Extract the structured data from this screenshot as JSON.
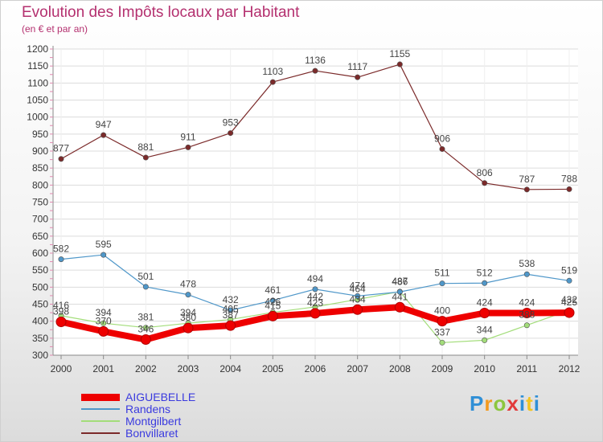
{
  "header": {
    "title": "Evolution des Impôts locaux par Habitant",
    "subtitle": "(en € et par an)"
  },
  "logo": {
    "text": "Proxiti"
  },
  "chart_data": {
    "type": "line",
    "title": "Evolution des Impôts locaux par Habitant",
    "subtitle": "(en € et par an)",
    "xlabel": "",
    "ylabel": "",
    "ylim": [
      300,
      1200
    ],
    "y_ticks": [
      300,
      350,
      400,
      450,
      500,
      550,
      600,
      650,
      700,
      750,
      800,
      850,
      900,
      950,
      1000,
      1050,
      1100,
      1150,
      1200
    ],
    "categories": [
      "2000",
      "2001",
      "2002",
      "2003",
      "2004",
      "2005",
      "2006",
      "2007",
      "2008",
      "2009",
      "2010",
      "2011",
      "2012"
    ],
    "legend_position": "bottom-left",
    "series": [
      {
        "name": "AIGUEBELLE",
        "color": "#ee0000",
        "values": [
          398,
          370,
          346,
          380,
          387,
          415,
          423,
          434,
          441,
          400,
          424,
          424,
          425
        ]
      },
      {
        "name": "Randens",
        "color": "#4f97c9",
        "values": [
          582,
          595,
          501,
          478,
          432,
          461,
          494,
          474,
          486,
          511,
          512,
          538,
          519
        ]
      },
      {
        "name": "Montgilbert",
        "color": "#a3dd7a",
        "values": [
          416,
          394,
          381,
          394,
          405,
          426,
          442,
          464,
          487,
          337,
          344,
          388,
          432
        ]
      },
      {
        "name": "Bonvillaret",
        "color": "#7b2a2a",
        "values": [
          877,
          947,
          881,
          911,
          953,
          1103,
          1136,
          1117,
          1155,
          906,
          806,
          787,
          788
        ]
      }
    ]
  }
}
